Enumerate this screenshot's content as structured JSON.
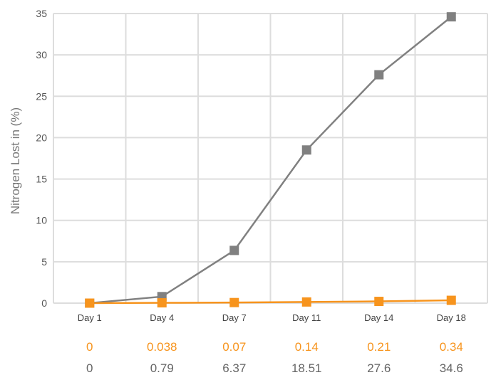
{
  "chart_data": {
    "type": "line",
    "categories": [
      "Day 1",
      "Day 4",
      "Day 7",
      "Day 11",
      "Day 14",
      "Day 18"
    ],
    "ylabel": "Nitrogen Lost in (%)",
    "ylim": [
      0,
      35
    ],
    "yticks": [
      0,
      5,
      10,
      15,
      20,
      25,
      30,
      35
    ],
    "grid": true,
    "series": [
      {
        "color": "#808080",
        "marker": "square",
        "values": [
          0,
          0.79,
          6.37,
          18.51,
          27.6,
          34.6
        ],
        "labels": [
          "0",
          "0.79",
          "6.37",
          "18.51",
          "27.6",
          "34.6"
        ]
      },
      {
        "color": "#F7941D",
        "marker": "square",
        "values": [
          0,
          0.038,
          0.07,
          0.14,
          0.21,
          0.34
        ],
        "labels": [
          "0",
          "0.038",
          "0.07",
          "0.14",
          "0.21",
          "0.34"
        ]
      }
    ]
  }
}
